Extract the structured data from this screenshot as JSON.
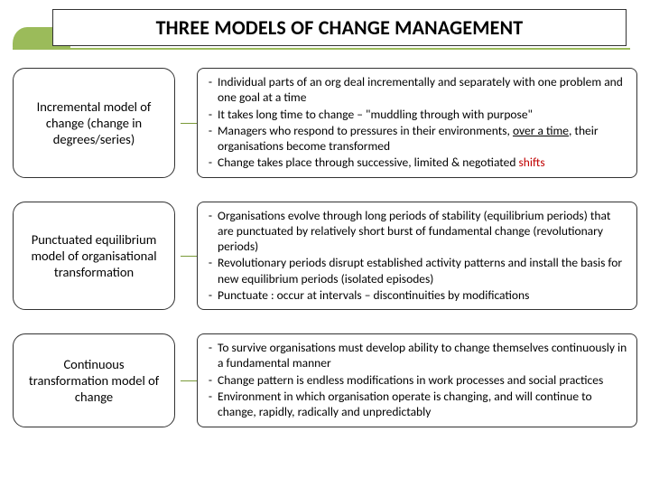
{
  "title": "THREE MODELS OF CHANGE MANAGEMENT",
  "colors": {
    "accent": "#9bbb5a",
    "border": "#333333",
    "text": "#000000",
    "red": "#c00000"
  },
  "models": [
    {
      "label": "Incremental model of change (change in degrees/series)",
      "points": [
        {
          "text": "Individual parts of an org deal incrementally and separately with one problem and one goal at a time"
        },
        {
          "text": "It takes long time to change – \"muddling through with purpose\""
        },
        {
          "text_html": "Managers who respond to pressures in their environments, <span class=\"u\">over a time</span>, their organisations become  transformed"
        },
        {
          "text_html": "Change takes place through successive, limited & negotiated <span class=\"red\">shifts</span>"
        }
      ]
    },
    {
      "label": "Punctuated equilibrium model of organisational transformation",
      "points": [
        {
          "text": "Organisations evolve through long periods of stability (equilibrium periods) that are punctuated by relatively short burst of fundamental change (revolutionary periods)"
        },
        {
          "text": "Revolutionary periods disrupt established activity patterns and install the basis for new equilibrium periods (isolated episodes)"
        },
        {
          "text": "Punctuate : occur at intervals – discontinuities  by modifications"
        }
      ]
    },
    {
      "label": "Continuous transformation model of change",
      "points": [
        {
          "text": "To survive organisations must develop ability to change themselves continuously in a fundamental manner"
        },
        {
          "text": "Change pattern is endless modifications in work processes and social practices"
        },
        {
          "text": "Environment in which organisation operate is changing, and will continue to change, rapidly, radically and unpredictably"
        }
      ]
    }
  ]
}
